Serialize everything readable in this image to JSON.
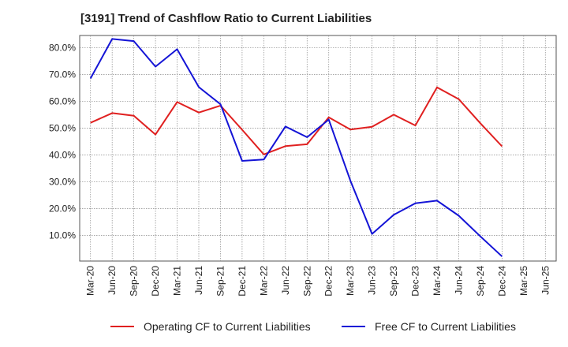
{
  "chart_data": {
    "type": "line",
    "title": "[3191]  Trend of Cashflow Ratio to Current Liabilities",
    "xlabel": "",
    "ylabel": "",
    "x": [
      "Mar-20",
      "Jun-20",
      "Sep-20",
      "Dec-20",
      "Mar-21",
      "Jun-21",
      "Sep-21",
      "Dec-21",
      "Mar-22",
      "Jun-22",
      "Sep-22",
      "Dec-22",
      "Mar-23",
      "Jun-23",
      "Sep-23",
      "Dec-23",
      "Mar-24",
      "Jun-24",
      "Sep-24",
      "Dec-24",
      "Mar-25",
      "Jun-25"
    ],
    "x_tick_labels": [
      "Mar-20",
      "Jun-20",
      "Sep-20",
      "Dec-20",
      "Mar-21",
      "Jun-21",
      "Sep-21",
      "Dec-21",
      "Mar-22",
      "Jun-22",
      "Sep-22",
      "Dec-22",
      "Mar-23",
      "Jun-23",
      "Sep-23",
      "Dec-23",
      "Mar-24",
      "Jun-24",
      "Sep-24",
      "Dec-24",
      "Mar-25",
      "Jun-25"
    ],
    "y_tick_values": [
      10,
      20,
      30,
      40,
      50,
      60,
      70,
      80
    ],
    "y_tick_labels": [
      "10.0%",
      "20.0%",
      "30.0%",
      "40.0%",
      "50.0%",
      "60.0%",
      "70.0%",
      "80.0%"
    ],
    "ylim": [
      0.5,
      84.5
    ],
    "grid": true,
    "legend_position": "bottom",
    "series": [
      {
        "name": "Operating CF to Current Liabilities",
        "color": "#e02020",
        "values": [
          52.0,
          55.6,
          54.6,
          47.6,
          59.7,
          55.8,
          58.4,
          49.4,
          40.2,
          43.3,
          44.0,
          54.0,
          49.5,
          50.5,
          55.0,
          51.0,
          65.2,
          60.8,
          51.8,
          43.2,
          null,
          null
        ]
      },
      {
        "name": "Free CF to Current Liabilities",
        "color": "#1414d6",
        "values": [
          68.5,
          83.2,
          82.4,
          72.9,
          79.4,
          65.3,
          58.9,
          37.8,
          38.3,
          50.6,
          46.6,
          53.2,
          30.4,
          10.6,
          17.7,
          22.0,
          23.0,
          17.4,
          9.7,
          2.2,
          null,
          null
        ]
      }
    ]
  }
}
